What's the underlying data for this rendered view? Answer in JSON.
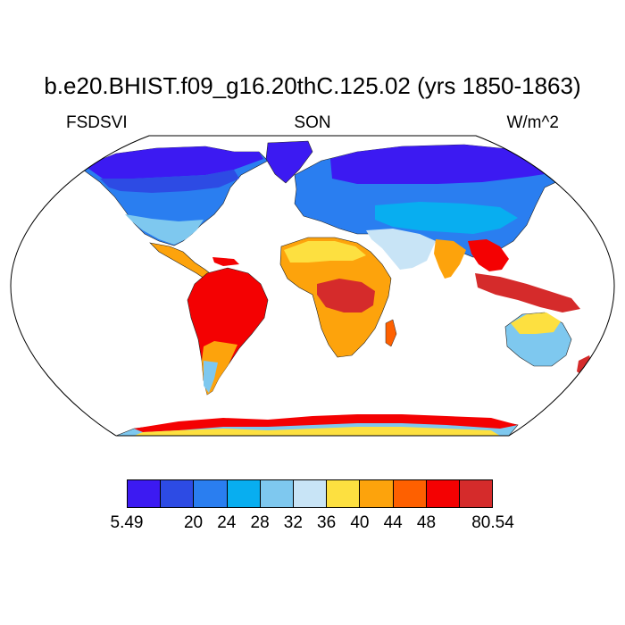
{
  "title": "b.e20.BHIST.f09_g16.20thC.125.02 (yrs 1850-1863)",
  "left_label": "FSDSVI",
  "center_label": "SON",
  "right_label": "W/m^2",
  "colorbar": {
    "colors": [
      "#3c1af2",
      "#2d4be4",
      "#2a7ef0",
      "#08aef0",
      "#7ec8ef",
      "#c8e4f6",
      "#fde040",
      "#fda30c",
      "#fe6000",
      "#f40102",
      "#d52b2b"
    ],
    "labels": [
      "5.49",
      "20",
      "24",
      "28",
      "32",
      "36",
      "40",
      "44",
      "48",
      "80.54"
    ]
  },
  "map": {
    "projection": "Robinson",
    "field": "FSDSVI",
    "season": "SON",
    "units": "W/m^2"
  }
}
